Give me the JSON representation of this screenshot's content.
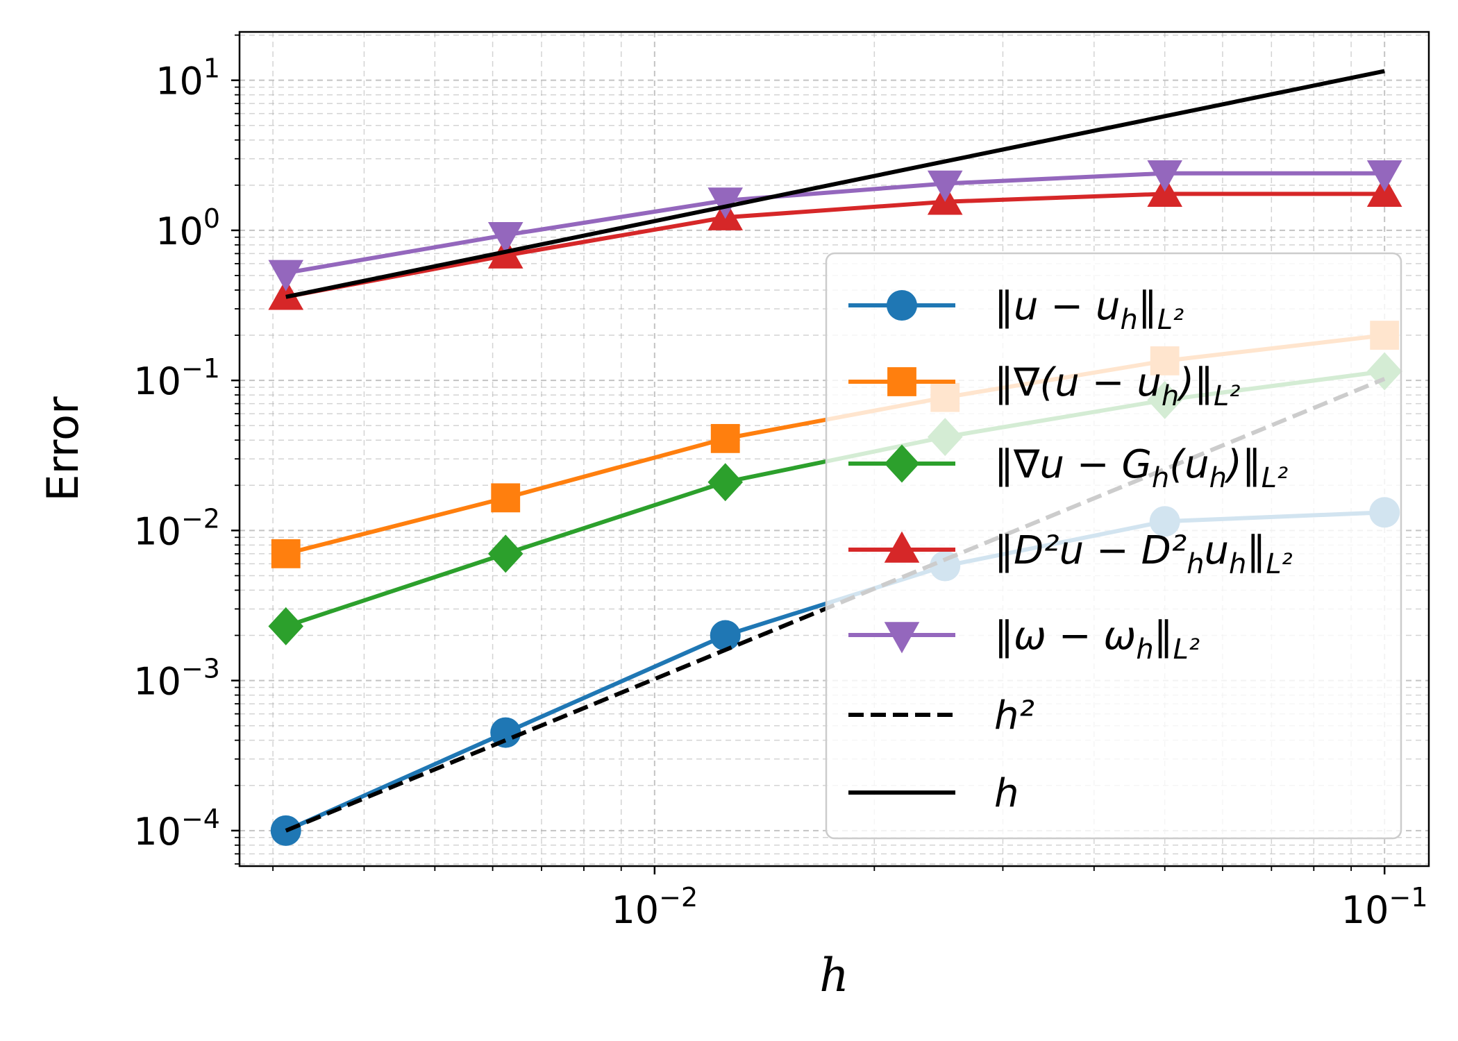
{
  "chart_data": {
    "type": "line",
    "xscale": "log",
    "yscale": "log",
    "xlabel": "h",
    "ylabel": "Error",
    "xlim": [
      0.0027,
      0.115
    ],
    "ylim": [
      5.8e-05,
      21
    ],
    "grid": "major and minor, dashed",
    "legend_position": "right",
    "x_ticks": [
      {
        "value": 0.01,
        "base": "10",
        "exp": "−2"
      },
      {
        "value": 0.1,
        "base": "10",
        "exp": "−1"
      }
    ],
    "y_ticks": [
      {
        "value": 10,
        "base": "10",
        "exp": "1"
      },
      {
        "value": 1,
        "base": "10",
        "exp": "0"
      },
      {
        "value": 0.1,
        "base": "10",
        "exp": "−1"
      },
      {
        "value": 0.01,
        "base": "10",
        "exp": "−2"
      },
      {
        "value": 0.001,
        "base": "10",
        "exp": "−3"
      },
      {
        "value": 0.0001,
        "base": "10",
        "exp": "−4"
      }
    ],
    "x": [
      0.003125,
      0.00625,
      0.0125,
      0.025,
      0.05,
      0.1
    ],
    "series": [
      {
        "name": "‖u − u_h‖_{L²}",
        "legend": {
          "main": "‖u − u",
          "sub1": "h",
          "after": "‖",
          "sub2": "L²"
        },
        "color": "#1f77b4",
        "marker": "circle",
        "linestyle": "solid",
        "values": [
          0.0001,
          0.00045,
          0.002,
          0.0058,
          0.0115,
          0.0132
        ]
      },
      {
        "name": "‖∇(u − u_h)‖_{L²}",
        "legend": {
          "main": "‖∇(u − u",
          "sub1": "h",
          "after": ")‖",
          "sub2": "L²"
        },
        "color": "#ff7f0e",
        "marker": "square",
        "linestyle": "solid",
        "values": [
          0.007,
          0.0165,
          0.041,
          0.077,
          0.135,
          0.2
        ]
      },
      {
        "name": "‖∇u − G_h(u_h)‖_{L²}",
        "legend": {
          "main": "‖∇u − G",
          "sub1": "h",
          "after": "(u",
          "sub2": "h",
          "after2": ")‖",
          "sub3": "L²"
        },
        "color": "#2ca02c",
        "marker": "diamond",
        "linestyle": "solid",
        "values": [
          0.0023,
          0.007,
          0.021,
          0.042,
          0.074,
          0.115
        ]
      },
      {
        "name": "‖D²u − D²_h u_h‖_{L²}",
        "legend": {
          "main": "‖D²u − D²",
          "sub1": "h",
          "after": "u",
          "sub2": "h",
          "after2": "‖",
          "sub3": "L²"
        },
        "color": "#d62728",
        "marker": "triangle-up",
        "linestyle": "solid",
        "values": [
          0.36,
          0.68,
          1.22,
          1.55,
          1.75,
          1.75
        ]
      },
      {
        "name": "‖ω − ω_h‖_{L²}",
        "legend": {
          "main": "‖ω − ω",
          "sub1": "h",
          "after": "‖",
          "sub2": "L²"
        },
        "color": "#9467bd",
        "marker": "triangle-down",
        "linestyle": "solid",
        "values": [
          0.52,
          0.93,
          1.58,
          2.05,
          2.4,
          2.4
        ]
      },
      {
        "name": "h²",
        "legend": {
          "main": "h²"
        },
        "color": "#000000",
        "marker": "none",
        "linestyle": "dashed",
        "values": [
          0.0001,
          0.0004,
          0.0016,
          0.0064,
          0.0256,
          0.1024
        ]
      },
      {
        "name": "h",
        "legend": {
          "main": "h"
        },
        "color": "#000000",
        "marker": "none",
        "linestyle": "solid",
        "values": [
          0.36,
          0.72,
          1.44,
          2.88,
          5.76,
          11.52
        ]
      }
    ]
  }
}
